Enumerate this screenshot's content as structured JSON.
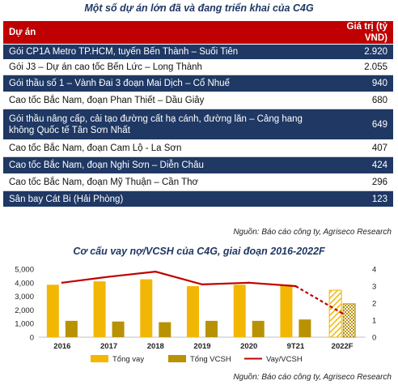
{
  "table": {
    "title": "Một số dự án lớn đã và đang triển khai của C4G",
    "headers": [
      "Dự án",
      "Giá trị (tỷ VND)"
    ],
    "rows": [
      {
        "project": "Gói CP1A Metro TP.HCM, tuyến Bến Thành – Suối Tiên",
        "value": "2.920"
      },
      {
        "project": "Gói J3 – Dự án cao tốc Bến Lức – Long Thành",
        "value": "2.055"
      },
      {
        "project": "Gói thầu số 1 – Vành Đai 3 đoạn Mai Dịch – Cổ Nhuế",
        "value": "940"
      },
      {
        "project": "Cao tốc Bắc Nam, đoạn Phan Thiết – Dầu Giây",
        "value": "680"
      },
      {
        "project": "Gói thầu nâng cấp, cải tạo đường cất hạ cánh, đường lăn – Cảng hang không Quốc tế Tân Sơn Nhất",
        "value": "649"
      },
      {
        "project": "Cao tốc Bắc Nam, đoạn Cam Lộ - La Sơn",
        "value": "407"
      },
      {
        "project": "Cao tốc Bắc Nam, đoạn Nghi Sơn – Diễn Châu",
        "value": "424"
      },
      {
        "project": "Cao tốc Bắc Nam, đoạn Mỹ Thuận – Cần Thơ",
        "value": "296"
      },
      {
        "project": "Sân bay Cát Bi (Hải Phòng)",
        "value": "123"
      }
    ],
    "source": "Nguồn: Báo cáo công ty, Agriseco Research"
  },
  "chart_data": {
    "type": "bar",
    "title": "Cơ cấu vay nợ/VCSH của C4G, giai đoạn 2016-2022F",
    "categories": [
      "2016",
      "2017",
      "2018",
      "2019",
      "2020",
      "9T21",
      "2022F"
    ],
    "series": [
      {
        "name": "Tổng vay",
        "kind": "bar",
        "axis": "left",
        "color": "#f2b705",
        "values": [
          3850,
          4100,
          4250,
          3750,
          3850,
          3850,
          3450
        ]
      },
      {
        "name": "Tổng VCSH",
        "kind": "bar",
        "axis": "left",
        "color": "#b89203",
        "values": [
          1200,
          1150,
          1100,
          1200,
          1200,
          1300,
          2450
        ]
      },
      {
        "name": "Vay/VCSH",
        "kind": "line",
        "axis": "right",
        "color": "#c00000",
        "values": [
          3.2,
          3.55,
          3.85,
          3.1,
          3.2,
          3.0,
          1.4
        ]
      }
    ],
    "forecast_category": "2022F",
    "y_left": {
      "ticks": [
        "0",
        "1,000",
        "2,000",
        "3,000",
        "4,000",
        "5,000"
      ],
      "lim": [
        0,
        5000
      ]
    },
    "y_right": {
      "ticks": [
        "0",
        "1",
        "2",
        "3",
        "4"
      ],
      "lim": [
        0,
        4
      ]
    },
    "grid": false,
    "legend_position": "bottom",
    "source": "Nguồn: Báo cáo công ty, Agriseco Research"
  }
}
